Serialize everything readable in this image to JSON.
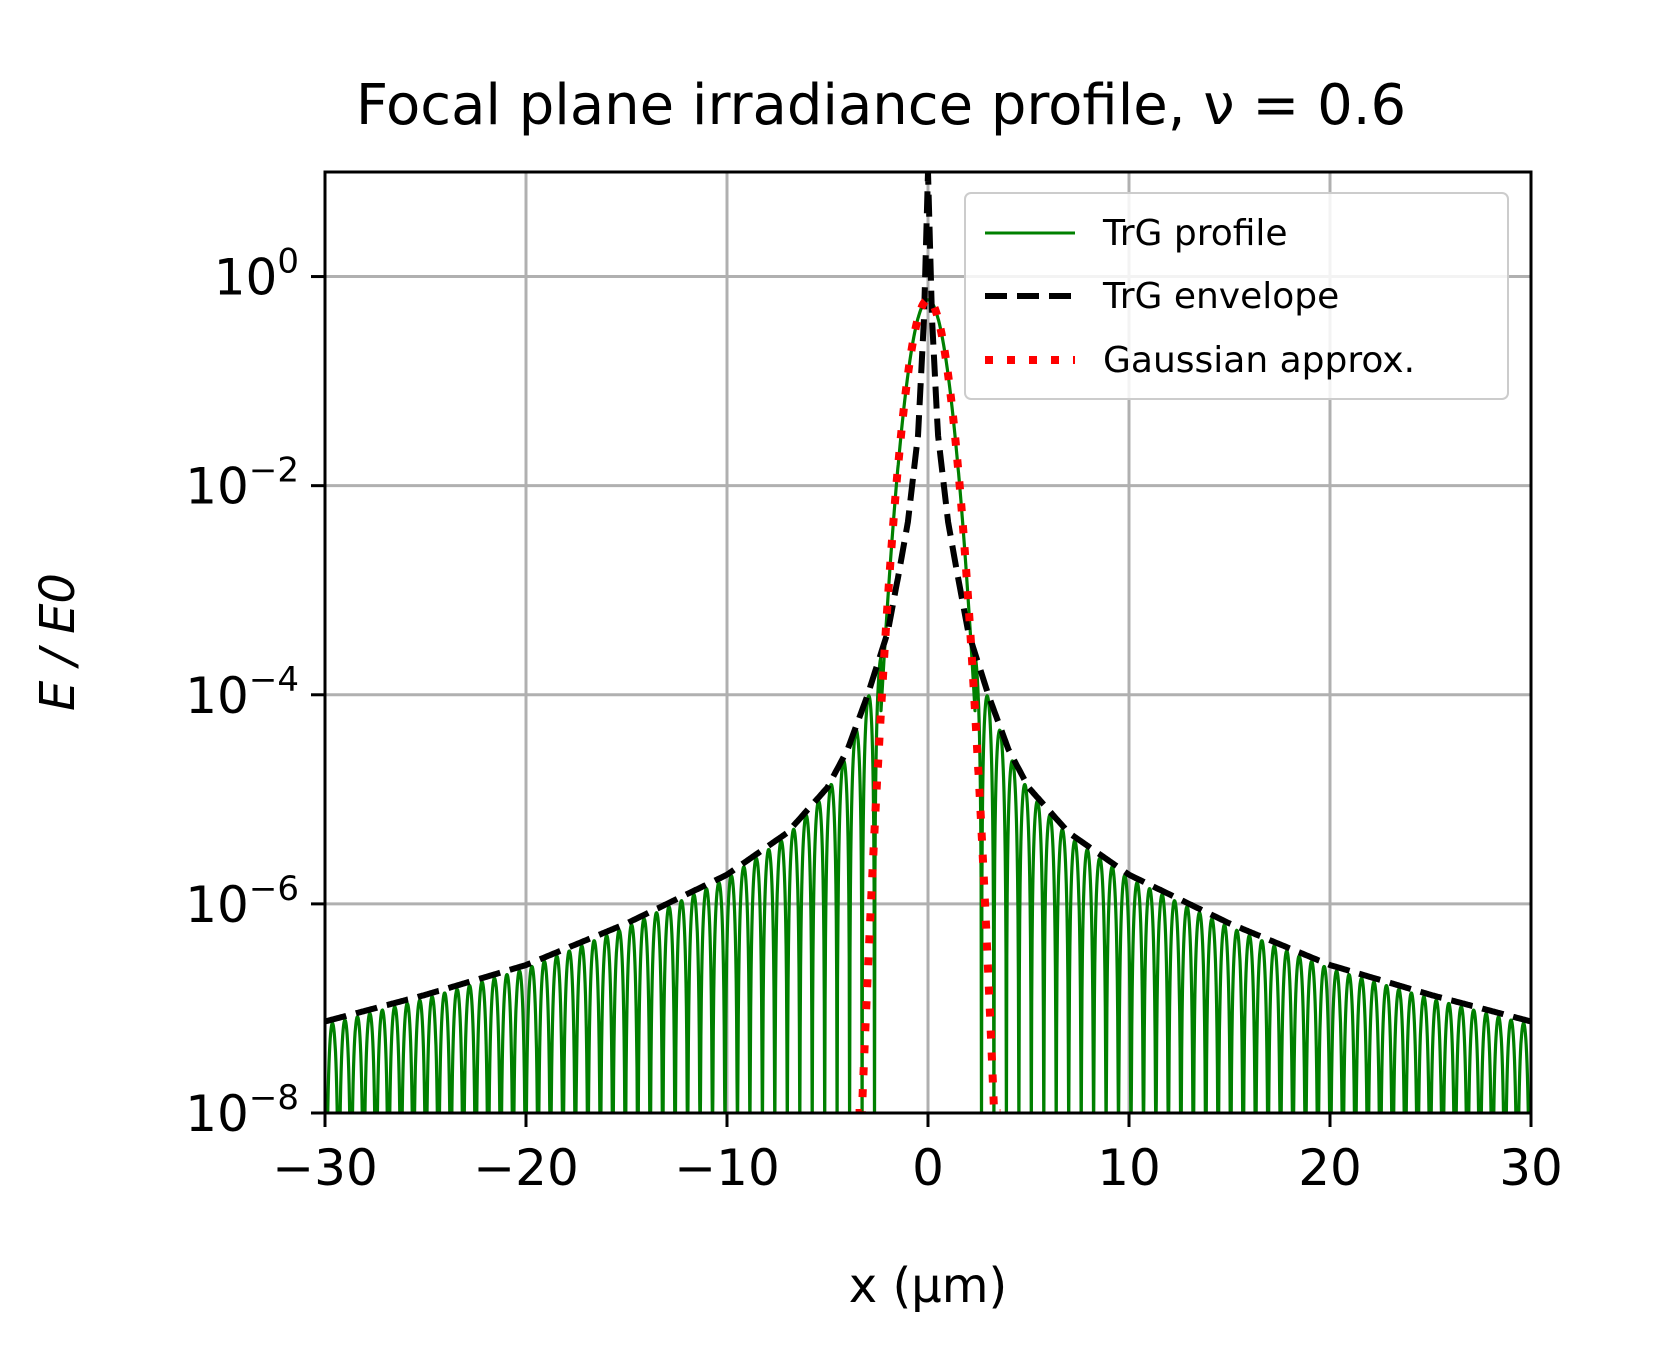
{
  "chart_data": {
    "type": "line",
    "title": "Focal plane irradiance profile, ν = 0.6",
    "xlabel": "x (μm)",
    "ylabel": "E / E0",
    "xlim": [
      -30,
      30
    ],
    "ylim": [
      1e-08,
      10
    ],
    "yscale": "log",
    "xticks": [
      -30,
      -20,
      -10,
      0,
      10,
      20,
      30
    ],
    "xtick_labels": [
      "−30",
      "−20",
      "−10",
      "0",
      "10",
      "20",
      "30"
    ],
    "yticks": [
      {
        "base": "10",
        "exp": "0"
      },
      {
        "base": "10",
        "exp": "−2"
      },
      {
        "base": "10",
        "exp": "−4"
      },
      {
        "base": "10",
        "exp": "−6"
      },
      {
        "base": "10",
        "exp": "−8"
      }
    ],
    "ytick_values": [
      1,
      0.01,
      0.0001,
      1e-06,
      1e-08
    ],
    "grid": true,
    "legend_position": "top-right",
    "series": [
      {
        "name": "TrG profile",
        "color": "#008000",
        "style": "solid",
        "description": "oscillating fringes below envelope",
        "x": [
          -30,
          -20,
          -10,
          -5,
          -3,
          -2.4,
          -2,
          -1,
          0,
          1,
          2,
          2.4,
          3,
          5,
          10,
          20,
          30
        ],
        "y": [
          7.5e-08,
          2.6e-07,
          1.6e-06,
          7e-06,
          4.5e-05,
          5e-06,
          0.0015,
          0.12,
          0.6,
          0.12,
          0.0015,
          5e-06,
          4.5e-05,
          7e-06,
          1.6e-06,
          2.6e-07,
          7.5e-08
        ]
      },
      {
        "name": "TrG envelope",
        "color": "#000000",
        "style": "dashed",
        "x": [
          -30,
          -25,
          -20,
          -15,
          -10,
          -7,
          -5,
          -4,
          -3,
          -2,
          -1.5,
          -1,
          -0.5,
          -0.2,
          0,
          0.2,
          0.5,
          1,
          1.5,
          2,
          3,
          4,
          5,
          7,
          10,
          15,
          20,
          25,
          30
        ],
        "y": [
          7.5e-08,
          1.35e-07,
          2.6e-07,
          6.5e-07,
          1.9e-06,
          4.8e-06,
          1.3e-05,
          3e-05,
          0.0001,
          0.0004,
          0.0013,
          0.0045,
          0.03,
          0.4,
          10,
          0.4,
          0.03,
          0.0045,
          0.0013,
          0.0004,
          0.0001,
          3e-05,
          1.3e-05,
          4.8e-06,
          1.9e-06,
          6.5e-07,
          2.6e-07,
          1.35e-07,
          7.5e-08
        ]
      },
      {
        "name": "Gaussian approx.",
        "color": "#ff0000",
        "style": "dotted",
        "x": [
          -3.6,
          -3,
          -2.5,
          -2,
          -1.5,
          -1,
          -0.5,
          0,
          0.5,
          1,
          1.5,
          2,
          2.5,
          3,
          3.6
        ],
        "y": [
          1e-08,
          1.6e-06,
          5.1e-05,
          0.00094,
          0.01,
          0.065,
          0.2,
          0.6,
          0.2,
          0.065,
          0.01,
          0.00094,
          5.1e-05,
          1.6e-06,
          1e-08
        ]
      }
    ]
  },
  "colors": {
    "grid": "#b0b0b0",
    "profile": "#008000",
    "envelope": "#000000",
    "gaussian": "#ff0000"
  }
}
